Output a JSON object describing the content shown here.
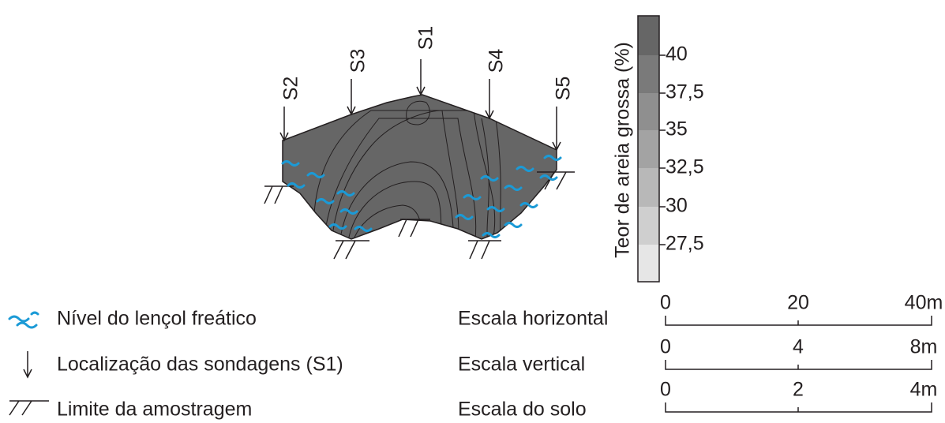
{
  "sondagens": [
    "S2",
    "S3",
    "S1",
    "S4",
    "S5"
  ],
  "colorbar": {
    "title": "Teor de areia grossa (%)",
    "labels": [
      "40",
      "37,5",
      "35",
      "32,5",
      "30",
      "27,5"
    ]
  },
  "legend": [
    "Nível do lençol freático",
    "Localização das sondagens (S1)",
    "Limite da amostragem"
  ],
  "scales": [
    {
      "label": "Escala horizontal",
      "ticks": [
        "0",
        "20",
        "40m"
      ]
    },
    {
      "label": "Escala vertical",
      "ticks": [
        "0",
        "4",
        "8m"
      ]
    },
    {
      "label": "Escala do solo",
      "ticks": [
        "0",
        "2",
        "4m"
      ]
    }
  ]
}
